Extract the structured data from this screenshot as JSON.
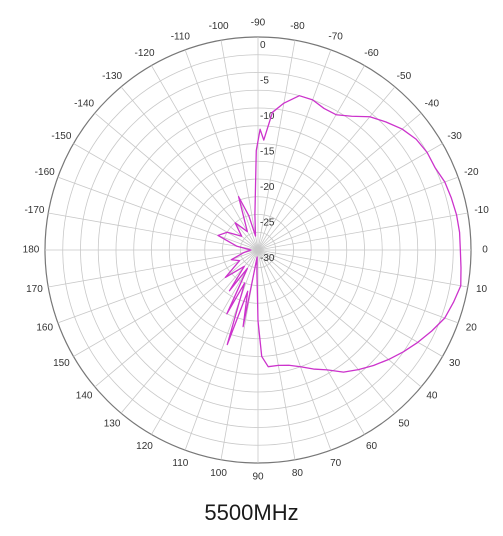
{
  "caption": "5500MHz",
  "colors": {
    "trace": "#cc33cc",
    "grid": "#c8c8c8",
    "outer_ring": "#777777",
    "text": "#333333"
  },
  "chart_data": {
    "type": "polar-line",
    "title": "5500MHz",
    "angle_unit": "degrees",
    "angle_tick_labels": [
      "0",
      "10",
      "20",
      "30",
      "40",
      "50",
      "60",
      "70",
      "80",
      "90",
      "100",
      "110",
      "120",
      "130",
      "140",
      "150",
      "160",
      "170",
      "180",
      "-170",
      "-160",
      "-150",
      "-140",
      "-130",
      "-120",
      "-110",
      "-100",
      "-90",
      "-80",
      "-70",
      "-60",
      "-50",
      "-40",
      "-30",
      "-20",
      "-10"
    ],
    "radial_tick_labels": [
      "0",
      "-5",
      "-10",
      "-15",
      "-20",
      "-25",
      "-30"
    ],
    "radial_range_db": [
      -30,
      0
    ],
    "grid": true,
    "series": [
      {
        "points": [
          [
            0,
            -1.5
          ],
          [
            5,
            -1.3
          ],
          [
            10,
            -1.0
          ],
          [
            15,
            -1.5
          ],
          [
            20,
            -2.0
          ],
          [
            25,
            -3.0
          ],
          [
            30,
            -4.0
          ],
          [
            35,
            -5.0
          ],
          [
            40,
            -6.0
          ],
          [
            45,
            -7.0
          ],
          [
            50,
            -8.0
          ],
          [
            55,
            -9.0
          ],
          [
            60,
            -10.5
          ],
          [
            65,
            -11.5
          ],
          [
            70,
            -12.5
          ],
          [
            75,
            -13.2
          ],
          [
            80,
            -13.5
          ],
          [
            85,
            -13.5
          ],
          [
            88,
            -15.0
          ],
          [
            90,
            -20.0
          ],
          [
            93,
            -27.0
          ],
          [
            97,
            -29.0
          ],
          [
            101,
            -19.0
          ],
          [
            104,
            -24.0
          ],
          [
            108,
            -16.0
          ],
          [
            112,
            -25.0
          ],
          [
            116,
            -20.0
          ],
          [
            120,
            -27.0
          ],
          [
            125,
            -23.0
          ],
          [
            130,
            -27.0
          ],
          [
            140,
            -24.0
          ],
          [
            150,
            -27.0
          ],
          [
            160,
            -26.0
          ],
          [
            170,
            -28.0
          ],
          [
            180,
            -29.0
          ],
          [
            -170,
            -27.0
          ],
          [
            -160,
            -24.0
          ],
          [
            -150,
            -25.0
          ],
          [
            -140,
            -27.0
          ],
          [
            -130,
            -25.0
          ],
          [
            -120,
            -27.0
          ],
          [
            -110,
            -22.0
          ],
          [
            -105,
            -25.0
          ],
          [
            -100,
            -28.0
          ],
          [
            -95,
            -25.0
          ],
          [
            -91,
            -16.0
          ],
          [
            -89,
            -13.0
          ],
          [
            -87,
            -14.5
          ],
          [
            -84,
            -10.5
          ],
          [
            -80,
            -9.0
          ],
          [
            -75,
            -7.5
          ],
          [
            -70,
            -7.5
          ],
          [
            -65,
            -8.0
          ],
          [
            -60,
            -8.0
          ],
          [
            -55,
            -7.0
          ],
          [
            -50,
            -5.5
          ],
          [
            -45,
            -4.5
          ],
          [
            -40,
            -3.5
          ],
          [
            -35,
            -2.8
          ],
          [
            -30,
            -2.5
          ],
          [
            -25,
            -2.5
          ],
          [
            -20,
            -2.0
          ],
          [
            -15,
            -1.8
          ],
          [
            -10,
            -1.6
          ],
          [
            -5,
            -1.5
          ],
          [
            0,
            -1.5
          ]
        ]
      }
    ]
  }
}
